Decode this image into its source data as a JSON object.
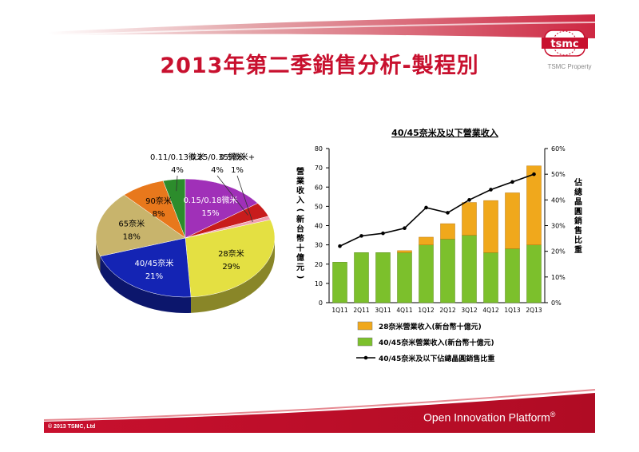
{
  "slide": {
    "title": "2013年第二季銷售分析-製程別",
    "logo_text": "tsmc",
    "property_text": "TSMC Property",
    "copyright": "© 2013 TSMC, Ltd",
    "footer_brand": "Open Innovation Platform",
    "footer_reg": "®",
    "brand_red": "#c8102e"
  },
  "chart_data": [
    {
      "type": "pie",
      "title": "",
      "slices": [
        {
          "label": "28奈米",
          "value": 29,
          "pct": "29%",
          "color": "#e4e042"
        },
        {
          "label": "40/45奈米",
          "value": 21,
          "pct": "21%",
          "color": "#1424b4"
        },
        {
          "label": "65奈米",
          "value": 18,
          "pct": "18%",
          "color": "#c8b46c"
        },
        {
          "label": "90奈米",
          "value": 8,
          "pct": "8%",
          "color": "#e8781c"
        },
        {
          "label": "0.11/0.13微米",
          "value": 4,
          "pct": "4%",
          "color": "#2c8c2c"
        },
        {
          "label": "0.15/0.18微米",
          "value": 15,
          "pct": "15%",
          "color": "#a030b8"
        },
        {
          "label": "0.25/0.35微米",
          "value": 4,
          "pct": "4%",
          "color": "#c81c1c"
        },
        {
          "label": "0.5微米+",
          "value": 1,
          "pct": "1%",
          "color": "#f0a0b0"
        }
      ]
    },
    {
      "type": "bar",
      "title": "40/45奈米及以下營業收入",
      "categories": [
        "1Q11",
        "2Q11",
        "3Q11",
        "4Q11",
        "1Q12",
        "2Q12",
        "3Q12",
        "4Q12",
        "1Q13",
        "2Q13"
      ],
      "series": [
        {
          "name": "28奈米營業收入(新台幣十億元)",
          "kind": "bar-stack",
          "color": "#f0a81c",
          "values": [
            0,
            0,
            0,
            1,
            4,
            8,
            17,
            27,
            29,
            41
          ]
        },
        {
          "name": "40/45奈米營業收入(新台幣十億元)",
          "kind": "bar-stack",
          "color": "#7cc02c",
          "values": [
            21,
            26,
            26,
            26,
            30,
            33,
            35,
            26,
            28,
            30
          ]
        },
        {
          "name": "40/45奈米及以下佔總晶圓銷售比重",
          "kind": "line",
          "axis": "right",
          "color": "#000000",
          "values": [
            22,
            26,
            27,
            29,
            37,
            35,
            40,
            44,
            47,
            50
          ]
        }
      ],
      "ylabel": "營業收入(新台幣十億元)",
      "ylabel_right": "佔總晶圓銷售比重",
      "ylim": [
        0,
        80
      ],
      "yticks": [
        "0",
        "10",
        "20",
        "30",
        "40",
        "50",
        "60",
        "70",
        "80"
      ],
      "ylim_right": [
        0,
        60
      ],
      "yticks_right": [
        "0%",
        "10%",
        "20%",
        "30%",
        "40%",
        "50%",
        "60%"
      ],
      "legend_position": "bottom",
      "grid": false
    }
  ]
}
